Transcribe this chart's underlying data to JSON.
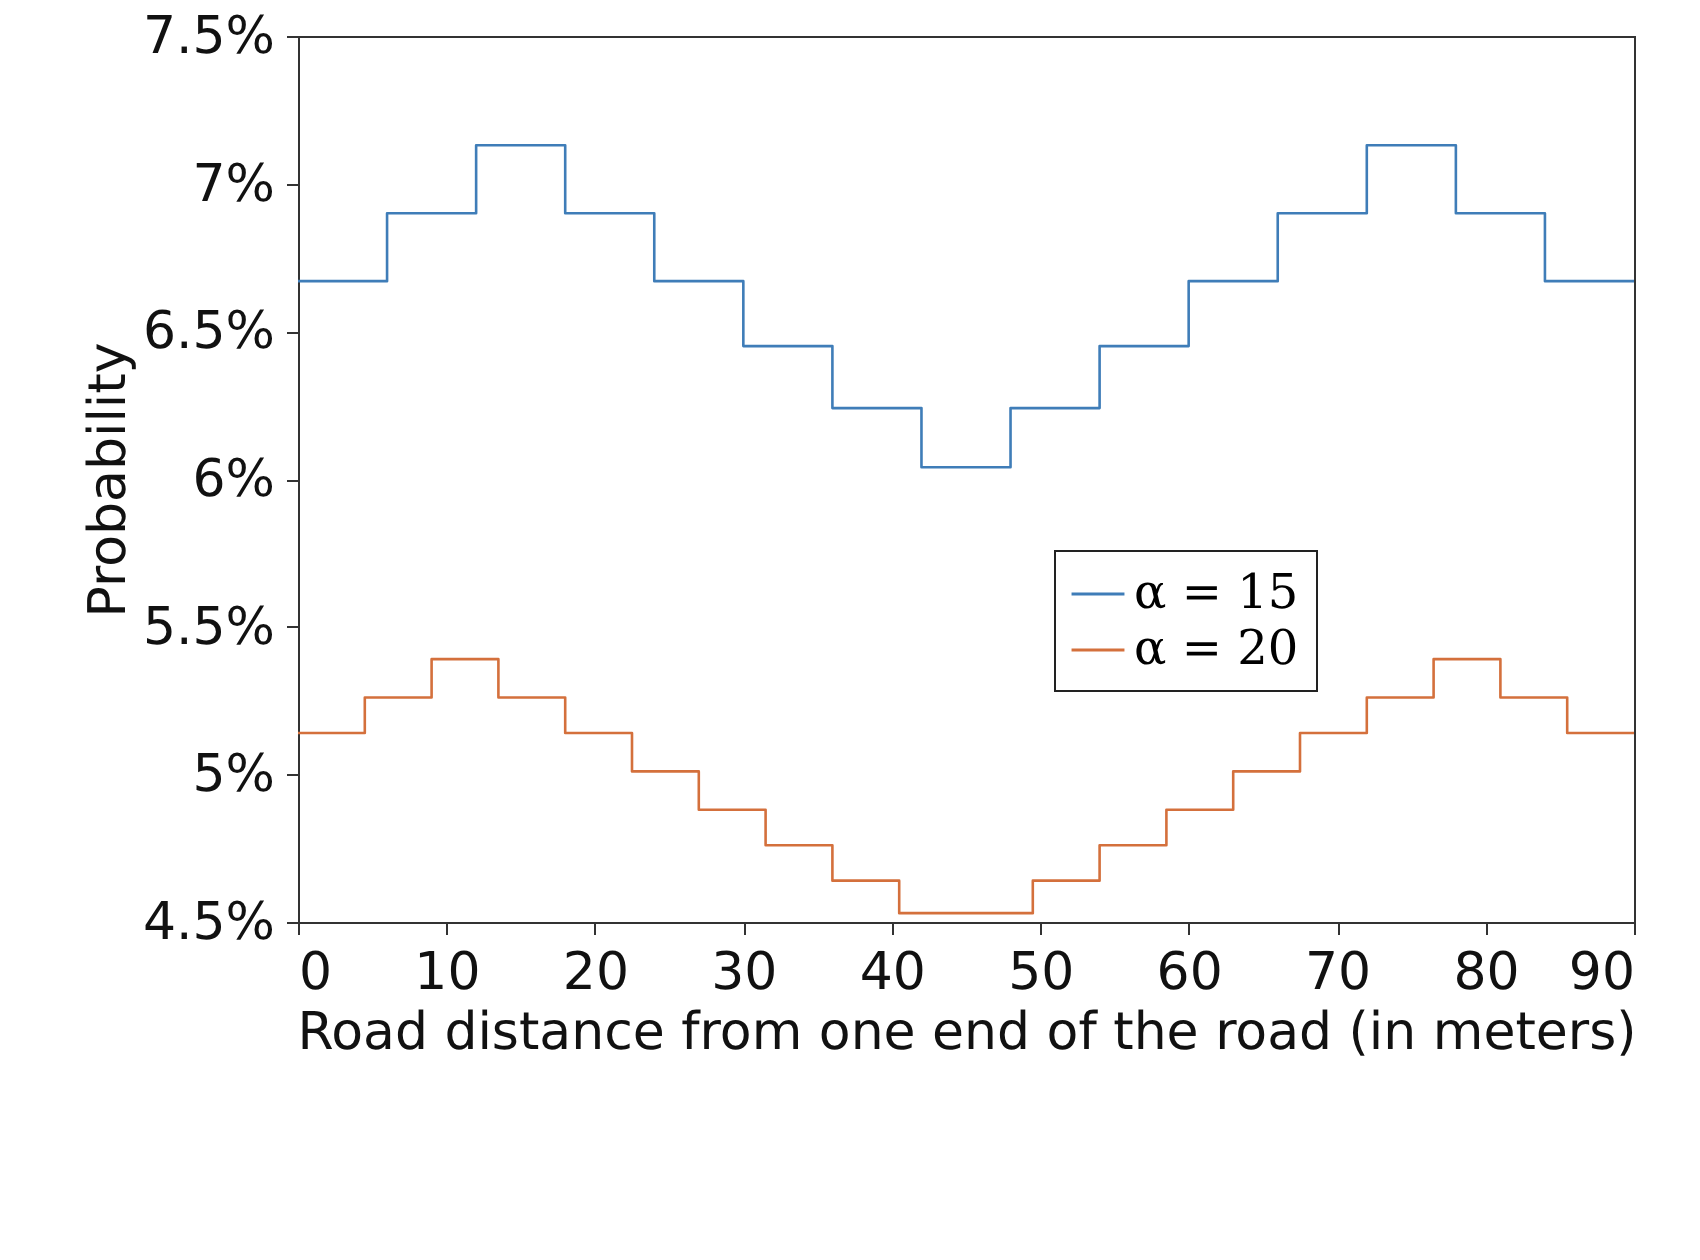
{
  "chart_data": {
    "type": "step",
    "xlabel": "Road distance from one end of the road (in meters)",
    "ylabel": "Probability",
    "xlim": [
      0,
      90
    ],
    "xticks": [
      0,
      10,
      20,
      30,
      40,
      50,
      60,
      70,
      80,
      90
    ],
    "ylim": [
      4.5,
      7.5
    ],
    "yticks": [
      {
        "value": 4.5,
        "label": "4.5%"
      },
      {
        "value": 5,
        "label": "5%"
      },
      {
        "value": 5.5,
        "label": "5.5%"
      },
      {
        "value": 6,
        "label": "6%"
      },
      {
        "value": 6.5,
        "label": "6.5%"
      },
      {
        "value": 7,
        "label": "7%"
      },
      {
        "value": 7.5,
        "label": "7.5%"
      }
    ],
    "legend": "right",
    "grid": false,
    "line_style": "solid",
    "series": [
      {
        "name": "α = 15",
        "color": "#3f7db8",
        "x": [
          0,
          6,
          12,
          18,
          24,
          30,
          36,
          42,
          48,
          54,
          60,
          66,
          72,
          78,
          84,
          90
        ],
        "values": [
          6.67,
          6.9,
          7.13,
          6.9,
          6.67,
          6.45,
          6.24,
          6.04,
          6.24,
          6.45,
          6.67,
          6.9,
          7.13,
          6.9,
          6.67,
          6.67
        ]
      },
      {
        "name": "α = 20",
        "color": "#d4703c",
        "x": [
          0,
          4.5,
          9,
          13.5,
          18,
          22.5,
          27,
          31.5,
          36,
          40.5,
          45,
          49.5,
          54,
          58.5,
          63,
          67.5,
          72,
          76.5,
          81,
          85.5,
          90
        ],
        "values": [
          5.14,
          5.26,
          5.39,
          5.26,
          5.14,
          5.01,
          4.88,
          4.76,
          4.64,
          4.53,
          4.53,
          4.64,
          4.76,
          4.88,
          5.01,
          5.14,
          5.26,
          5.39,
          5.26,
          5.14,
          5.14
        ]
      }
    ]
  }
}
